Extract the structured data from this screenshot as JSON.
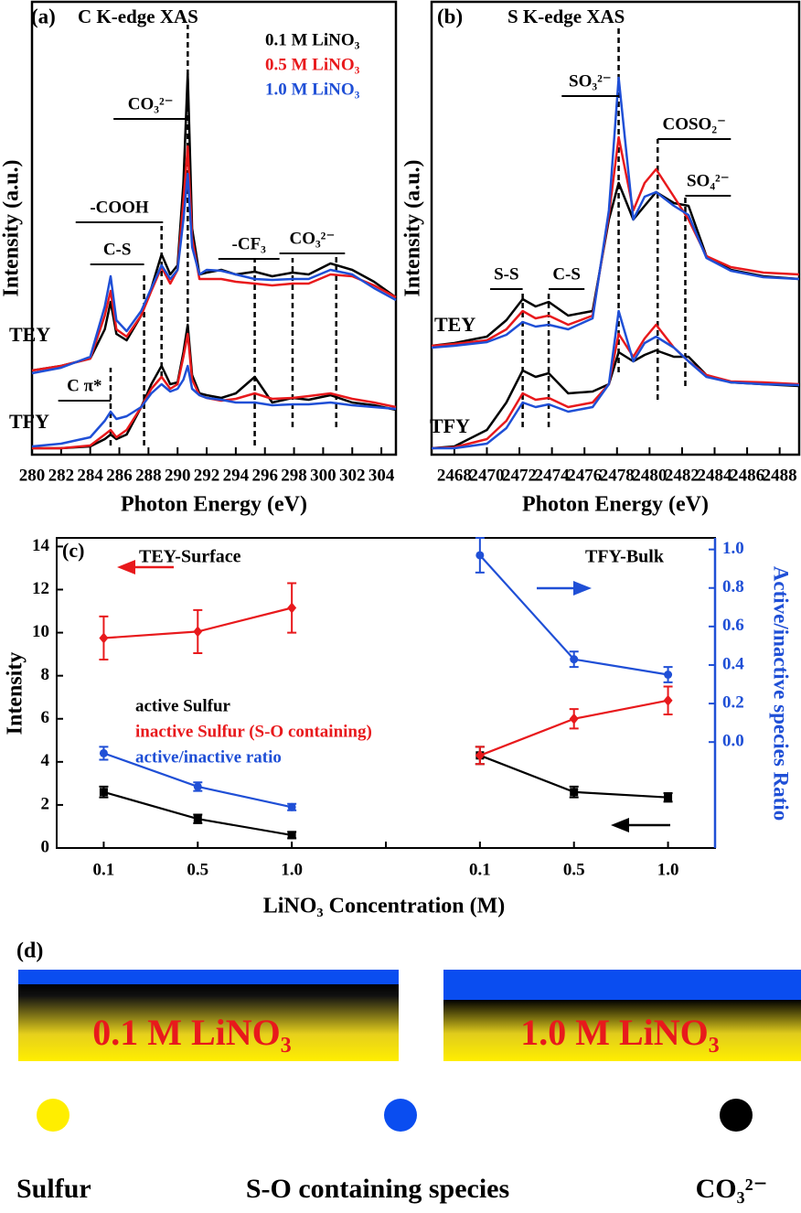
{
  "chart_data": [
    {
      "type": "line",
      "panel_label": "(a)",
      "title": "C K-edge XAS",
      "xlabel": "Photon Energy (eV)",
      "ylabel": "Intensity (a.u.)",
      "xlim": [
        280,
        305
      ],
      "xticks": [
        280,
        282,
        284,
        286,
        288,
        290,
        292,
        294,
        296,
        298,
        300,
        302,
        304
      ],
      "ylim": [
        0,
        495
      ],
      "signals": [
        "TEY",
        "TFY"
      ],
      "x": [
        280,
        282,
        284,
        285,
        285.4,
        285.8,
        286.5,
        287.5,
        288.2,
        288.9,
        289.5,
        290,
        290.4,
        290.7,
        291,
        291.5,
        292,
        293,
        294,
        295.3,
        296.5,
        297.9,
        299,
        300.5,
        302,
        303.5,
        305
      ],
      "series": [
        {
          "name": "0.1 M LiNO₃",
          "color": "#000000",
          "values": [
            [
              92,
              97,
              105,
              137,
              167,
              132,
              125,
              152,
              182,
              219,
              197,
              207,
              297,
              417,
              247,
              197,
              199,
              202,
              197,
              200,
              195,
              199,
              197,
              209,
              202,
              189,
              172
            ],
            [
              7,
              7,
              9,
              17,
              22,
              17,
              22,
              52,
              77,
              97,
              77,
              79,
              112,
              142,
              87,
              67,
              65,
              62,
              67,
              85,
              57,
              62,
              60,
              65,
              57,
              54,
              49
            ]
          ]
        },
        {
          "name": "0.5 M LiNO₃",
          "color": "#e8191c",
          "values": [
            [
              92,
              97,
              105,
              152,
              179,
              137,
              129,
              152,
              179,
              205,
              187,
              202,
              277,
              337,
              237,
              192,
              192,
              192,
              189,
              187,
              185,
              187,
              187,
              197,
              195,
              185,
              172
            ],
            [
              7,
              7,
              10,
              22,
              27,
              19,
              27,
              52,
              72,
              85,
              72,
              77,
              107,
              132,
              82,
              65,
              62,
              59,
              61,
              67,
              61,
              62,
              64,
              67,
              61,
              57,
              52
            ]
          ]
        },
        {
          "name": "1.0 M LiNO₃",
          "color": "#1f4fd6",
          "values": [
            [
              89,
              95,
              107,
              162,
              195,
              147,
              135,
              157,
              182,
              207,
              192,
              202,
              257,
              307,
              227,
              197,
              202,
              201,
              197,
              192,
              191,
              192,
              192,
              202,
              197,
              182,
              169
            ],
            [
              9,
              12,
              19,
              37,
              47,
              39,
              42,
              52,
              67,
              77,
              69,
              72,
              82,
              97,
              72,
              65,
              62,
              60,
              57,
              57,
              54,
              55,
              55,
              57,
              54,
              52,
              50
            ]
          ]
        }
      ],
      "annotations": [
        {
          "label": "CO₃²⁻",
          "x": [
            285.6,
            290.7
          ],
          "y": 367
        },
        {
          "label": "-COOH",
          "x": [
            283,
            289
          ],
          "y": 254
        },
        {
          "label": "C-S",
          "x": [
            284,
            287.7
          ],
          "y": 208
        },
        {
          "label": "C π*",
          "x": [
            281.8,
            285.4
          ],
          "y": 59
        },
        {
          "label": "-CF₃",
          "x": [
            292.8,
            297
          ],
          "y": 214
        },
        {
          "label": "CO₃²⁻",
          "x": [
            297,
            301.5
          ],
          "y": 220
        }
      ],
      "markers": [
        {
          "x": 285.4,
          "y": [
            10,
            95
          ]
        },
        {
          "x": 287.7,
          "y": [
            10,
            200
          ]
        },
        {
          "x": 288.9,
          "y": [
            85,
            250
          ]
        },
        {
          "x": 290.7,
          "y": [
            125,
            470
          ]
        },
        {
          "x": 295.3,
          "y": [
            10,
            215
          ]
        },
        {
          "x": 297.9,
          "y": [
            30,
            215
          ]
        },
        {
          "x": 300.9,
          "y": [
            30,
            220
          ]
        }
      ]
    },
    {
      "type": "line",
      "panel_label": "(b)",
      "title": "S K-edge XAS",
      "xlabel": "Photon Energy (eV)",
      "ylabel": "Intensity (a.u.)",
      "xlim": [
        2466.6,
        2489.2
      ],
      "xticks": [
        2468,
        2470,
        2472,
        2474,
        2476,
        2478,
        2480,
        2482,
        2484,
        2486,
        2488
      ],
      "ylim": [
        0,
        495
      ],
      "signals": [
        "TEY",
        "TFY"
      ],
      "x": [
        2466.6,
        2468,
        2470,
        2471.2,
        2472.2,
        2473,
        2473.8,
        2475,
        2476.5,
        2477.5,
        2478.1,
        2479,
        2479.7,
        2480.4,
        2481.5,
        2482.4,
        2483.5,
        2485,
        2487,
        2489.2
      ],
      "series": [
        {
          "color": "#000000",
          "values": [
            [
              119,
              122,
              129,
              147,
              170,
              162,
              167,
              152,
              157,
              257,
              297,
              257,
              272,
              287,
              275,
              272,
              217,
              202,
              195,
              192
            ],
            [
              7,
              9,
              27,
              57,
              92,
              85,
              89,
              67,
              69,
              77,
              112,
              102,
              109,
              114,
              107,
              107,
              87,
              79,
              77,
              75
            ]
          ]
        },
        {
          "color": "#e8191c",
          "values": [
            [
              119,
              121,
              125,
              137,
              157,
              149,
              152,
              142,
              152,
              262,
              347,
              267,
              297,
              312,
              282,
              257,
              217,
              205,
              199,
              197
            ],
            [
              7,
              8,
              17,
              37,
              67,
              60,
              62,
              52,
              57,
              77,
              132,
              107,
              127,
              142,
              117,
              102,
              87,
              80,
              79,
              77
            ]
          ]
        },
        {
          "color": "#1f4fd6",
          "values": [
            [
              117,
              119,
              123,
              131,
              145,
              140,
              142,
              137,
              149,
              267,
              412,
              257,
              282,
              287,
              272,
              262,
              215,
              201,
              194,
              192
            ],
            [
              7,
              7,
              12,
              29,
              57,
              52,
              55,
              47,
              52,
              77,
              157,
              102,
              122,
              129,
              117,
              102,
              85,
              79,
              77,
              76
            ]
          ]
        }
      ],
      "annotations": [
        {
          "label": "S-S",
          "x": [
            2470.2,
            2472.2
          ],
          "y": 181
        },
        {
          "label": "C-S",
          "x": [
            2473.8,
            2476
          ],
          "y": 181
        },
        {
          "label": "SO₃²⁻",
          "x": [
            2474.6,
            2478.1
          ],
          "y": 392
        },
        {
          "label": "COSO₂⁻",
          "x": [
            2480.5,
            2485
          ],
          "y": 345
        },
        {
          "label": "SO₄²⁻",
          "x": [
            2482.2,
            2485
          ],
          "y": 283
        }
      ],
      "markers": [
        {
          "x": 2472.2,
          "y": [
            30,
            180
          ]
        },
        {
          "x": 2473.8,
          "y": [
            30,
            180
          ]
        },
        {
          "x": 2478.1,
          "y": [
            90,
            470
          ]
        },
        {
          "x": 2480.5,
          "y": [
            60,
            345
          ]
        },
        {
          "x": 2482.2,
          "y": [
            75,
            285
          ]
        }
      ]
    },
    {
      "type": "line",
      "panel_label": "(c)",
      "xlabel": "LiNO₃ Concentration (M)",
      "ylabel": "Intensity",
      "y2label": "Active/inactive species Ratio",
      "annotations": [
        "TEY-Surface",
        "TFY-Bulk"
      ],
      "categories": [
        "0.1",
        "0.5",
        "1.0",
        null,
        "0.1",
        "0.5",
        "1.0"
      ],
      "ylim": [
        0,
        14.4
      ],
      "yticks": [
        0,
        2,
        4,
        6,
        8,
        10,
        12,
        14
      ],
      "y2lim": [
        -0.55,
        1.06
      ],
      "y2ticks": [
        {
          "value": 0,
          "label": "0.0"
        },
        0.2,
        0.4,
        0.6,
        0.8,
        {
          "value": 1,
          "label": "1.0"
        }
      ],
      "series": [
        {
          "name": "active Sulfur",
          "color": "#000000",
          "marker": "square",
          "values": [
            2.6,
            1.35,
            0.6,
            null,
            4.3,
            2.6,
            2.35
          ],
          "errors": [
            0.25,
            0.2,
            0.15,
            null,
            0.4,
            0.25,
            0.2
          ]
        },
        {
          "name": "inactive Sulfur (S-O containing)",
          "color": "#e8191c",
          "marker": "diamond",
          "values": [
            9.75,
            10.05,
            11.15,
            null,
            4.3,
            6.0,
            6.85
          ],
          "errors": [
            1.0,
            1.0,
            1.15,
            null,
            0.4,
            0.45,
            0.65
          ]
        },
        {
          "name": "active/inactive ratio",
          "color": "#1f4fd6",
          "marker": "circle",
          "values": [
            4.4,
            2.85,
            1.9,
            null,
            null,
            null,
            null
          ],
          "errors": [
            0.3,
            0.2,
            0.15,
            null,
            null,
            null,
            null
          ]
        },
        {
          "color": "#1f4fd6",
          "marker": "circle",
          "axis": "y2",
          "values": [
            null,
            null,
            null,
            null,
            0.97,
            0.43,
            0.35
          ],
          "errors": [
            null,
            null,
            null,
            null,
            0.09,
            0.04,
            0.04
          ]
        }
      ]
    }
  ],
  "diagram": {
    "label": "(d)",
    "panels": [
      "0.1 M LiNO₃",
      "1.0 M LiNO₃"
    ],
    "legend": [
      "Sulfur",
      "S-O containing species",
      "CO₃²⁻"
    ]
  }
}
